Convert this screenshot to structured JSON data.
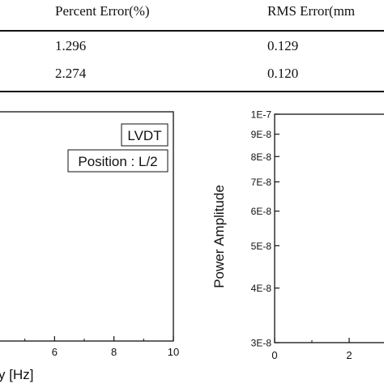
{
  "table": {
    "headers": [
      "Percent Error(%)",
      "RMS Error(mm"
    ],
    "rows": [
      [
        "1.296",
        "0.129"
      ],
      [
        "2.274",
        "0.120"
      ]
    ]
  },
  "chart_data": [
    {
      "type": "line",
      "title": "",
      "xlabel": "y [Hz]",
      "ylabel": "",
      "x_ticks": [
        "6",
        "8",
        "10"
      ],
      "xlim": [
        4,
        10
      ],
      "annotations": [
        "LVDT",
        "Position : L/2"
      ],
      "series": []
    },
    {
      "type": "line",
      "title": "",
      "xlabel": "",
      "ylabel": "Power Amplitude",
      "y_scale": "log",
      "y_ticks": [
        "1E-7",
        "9E-8",
        "8E-8",
        "7E-8",
        "6E-8",
        "5E-8",
        "4E-8",
        "3E-8"
      ],
      "ylim": [
        3e-08,
        1e-07
      ],
      "x_ticks": [
        "0",
        "2"
      ],
      "series": []
    }
  ]
}
